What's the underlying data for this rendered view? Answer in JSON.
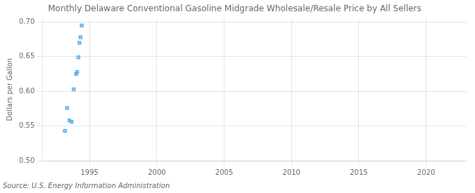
{
  "chart_data": {
    "type": "scatter",
    "title": "Monthly Delaware Conventional Gasoline Midgrade Wholesale/Resale Price by All Sellers",
    "ylabel": "Dollars per Gallon",
    "source": "Source: U.S. Energy Information Administration",
    "x": [
      1993.17,
      1993.33,
      1993.5,
      1993.67,
      1993.83,
      1994.0,
      1994.08,
      1994.17,
      1994.25,
      1994.33,
      1994.42
    ],
    "values": [
      0.543,
      0.576,
      0.558,
      0.556,
      0.603,
      0.625,
      0.628,
      0.649,
      0.67,
      0.678,
      0.695
    ],
    "xlim": [
      1991.5,
      2023
    ],
    "ylim": [
      0.5,
      0.705
    ],
    "xticks": [
      1995,
      2000,
      2005,
      2010,
      2015,
      2020
    ],
    "yticks": [
      {
        "value": 0.5,
        "label": "0.50"
      },
      0.55,
      {
        "value": 0.6,
        "label": "0.60"
      },
      0.65,
      {
        "value": 0.7,
        "label": "0.70"
      }
    ],
    "marker": "square",
    "grid": true
  }
}
